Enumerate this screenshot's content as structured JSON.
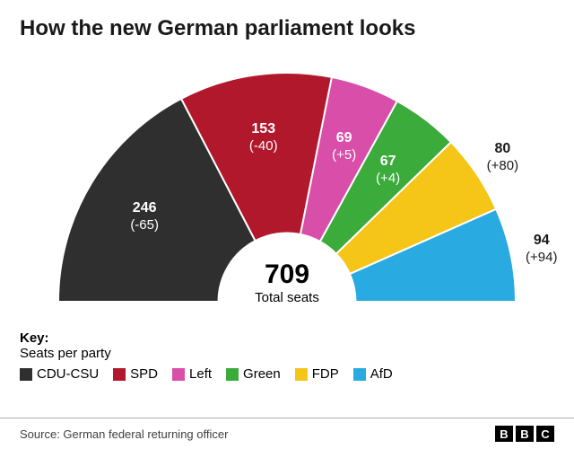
{
  "title": "How the new German parliament looks",
  "chart": {
    "type": "semi-donut",
    "total": 709,
    "total_caption": "Total seats",
    "inner_radius_ratio": 0.3,
    "background": "#ffffff",
    "segments": [
      {
        "name": "CDU-CSU",
        "seats": 246,
        "delta": "(-65)",
        "color": "#2f2f2f",
        "label_color": "#ffffff"
      },
      {
        "name": "SPD",
        "seats": 153,
        "delta": "(-40)",
        "color": "#b2182b",
        "label_color": "#ffffff"
      },
      {
        "name": "Left",
        "seats": 69,
        "delta": "(+5)",
        "color": "#d94ea8",
        "label_color": "#ffffff"
      },
      {
        "name": "Green",
        "seats": 67,
        "delta": "(+4)",
        "color": "#3bab3b",
        "label_color": "#ffffff"
      },
      {
        "name": "FDP",
        "seats": 80,
        "delta": "(+80)",
        "color": "#f5c518",
        "label_color": "#1a1a1a"
      },
      {
        "name": "AfD",
        "seats": 94,
        "delta": "(+94)",
        "color": "#29abe2",
        "label_color": "#1a1a1a"
      }
    ],
    "label_inside_cutoff": 4,
    "title_fontsize": 24,
    "label_fontsize": 15
  },
  "key": {
    "heading": "Key:",
    "subheading": "Seats per party"
  },
  "source": "Source: German federal returning officer",
  "brand": [
    "B",
    "B",
    "C"
  ]
}
